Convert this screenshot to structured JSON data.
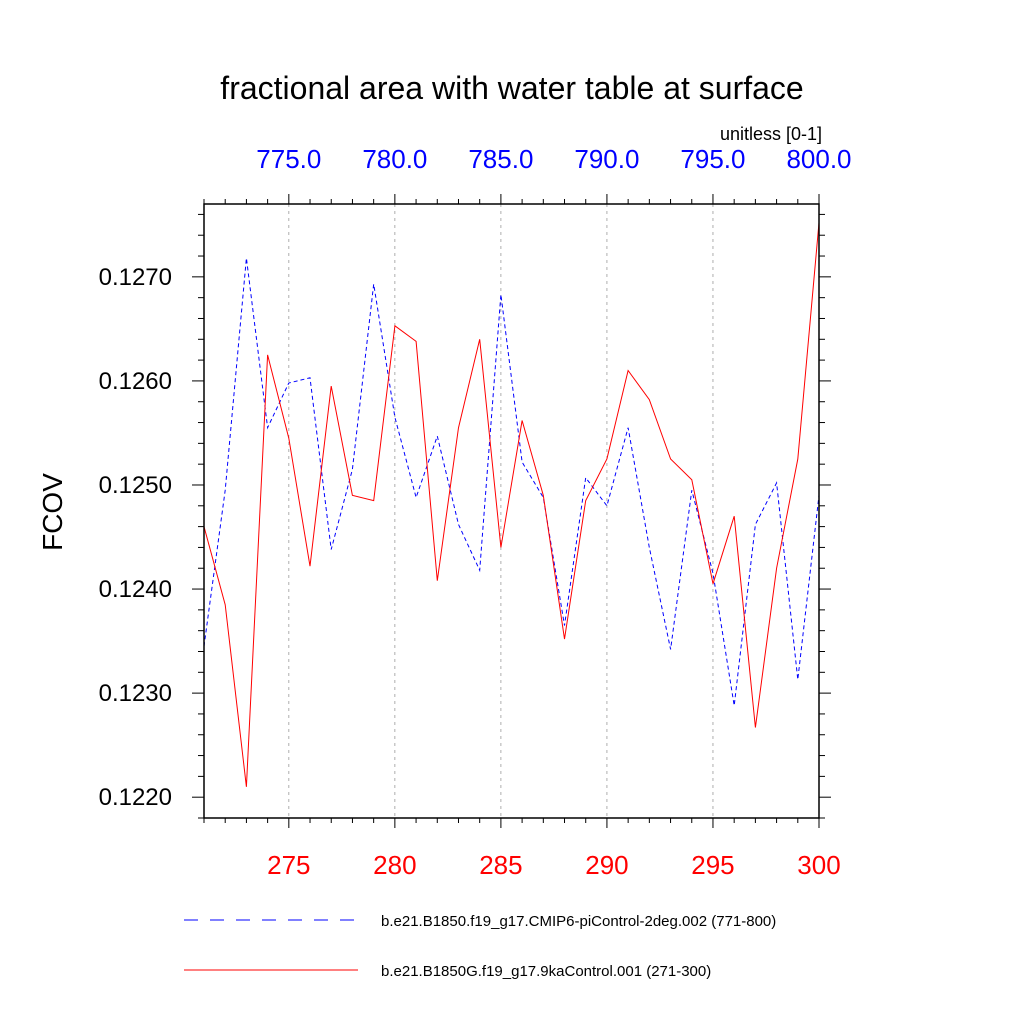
{
  "chart_data": {
    "type": "line",
    "title": "fractional area with water table at surface",
    "units": "unitless [0-1]",
    "ylabel": "FCOV",
    "ylim": [
      0.1218,
      0.1277
    ],
    "yticks": [
      0.122,
      0.123,
      0.124,
      0.125,
      0.126,
      0.127
    ],
    "ytick_labels": [
      "0.1220",
      "0.1230",
      "0.1240",
      "0.1250",
      "0.1260",
      "0.1270"
    ],
    "grid": "vertical dashed at major x ticks",
    "bottom_axis": {
      "range": [
        271,
        300
      ],
      "ticks": [
        275,
        280,
        285,
        290,
        295,
        300
      ],
      "tick_labels": [
        "275",
        "280",
        "285",
        "290",
        "295",
        "300"
      ],
      "color": "#ff0000"
    },
    "top_axis": {
      "range": [
        771,
        800
      ],
      "ticks": [
        775,
        780,
        785,
        790,
        795,
        800
      ],
      "tick_labels": [
        "775.0",
        "780.0",
        "785.0",
        "790.0",
        "795.0",
        "800.0"
      ],
      "color": "#0000ff"
    },
    "legend_position": "bottom",
    "series": [
      {
        "name": "b.e21.B1850.f19_g17.CMIP6-piControl-2deg.002 (771-800)",
        "color": "#0000ff",
        "style": "dashed",
        "axis": "top",
        "x": [
          771,
          772,
          773,
          774,
          775,
          776,
          777,
          778,
          779,
          780,
          781,
          782,
          783,
          784,
          785,
          786,
          787,
          788,
          789,
          790,
          791,
          792,
          793,
          794,
          795,
          796,
          797,
          798,
          799,
          800
        ],
        "values": [
          0.12345,
          0.12495,
          0.12718,
          0.12555,
          0.12598,
          0.12603,
          0.12438,
          0.12515,
          0.12693,
          0.12565,
          0.12488,
          0.12547,
          0.12462,
          0.12418,
          0.12683,
          0.12522,
          0.12488,
          0.12365,
          0.12507,
          0.1248,
          0.12555,
          0.1244,
          0.12342,
          0.12495,
          0.12415,
          0.12288,
          0.12462,
          0.12502,
          0.12313,
          0.1249
        ]
      },
      {
        "name": "b.e21.B1850G.f19_g17.9kaControl.001 (271-300)",
        "color": "#ff0000",
        "style": "solid",
        "axis": "bottom",
        "x": [
          271,
          272,
          273,
          274,
          275,
          276,
          277,
          278,
          279,
          280,
          281,
          282,
          283,
          284,
          285,
          286,
          287,
          288,
          289,
          290,
          291,
          292,
          293,
          294,
          295,
          296,
          297,
          298,
          299,
          300
        ],
        "values": [
          0.1246,
          0.12385,
          0.1221,
          0.12625,
          0.12545,
          0.12422,
          0.12595,
          0.1249,
          0.12485,
          0.12653,
          0.12638,
          0.12408,
          0.12555,
          0.1264,
          0.1244,
          0.12562,
          0.1249,
          0.12352,
          0.12485,
          0.12525,
          0.1261,
          0.12582,
          0.12525,
          0.12505,
          0.12405,
          0.1247,
          0.12267,
          0.1242,
          0.12525,
          0.12752
        ]
      }
    ]
  }
}
